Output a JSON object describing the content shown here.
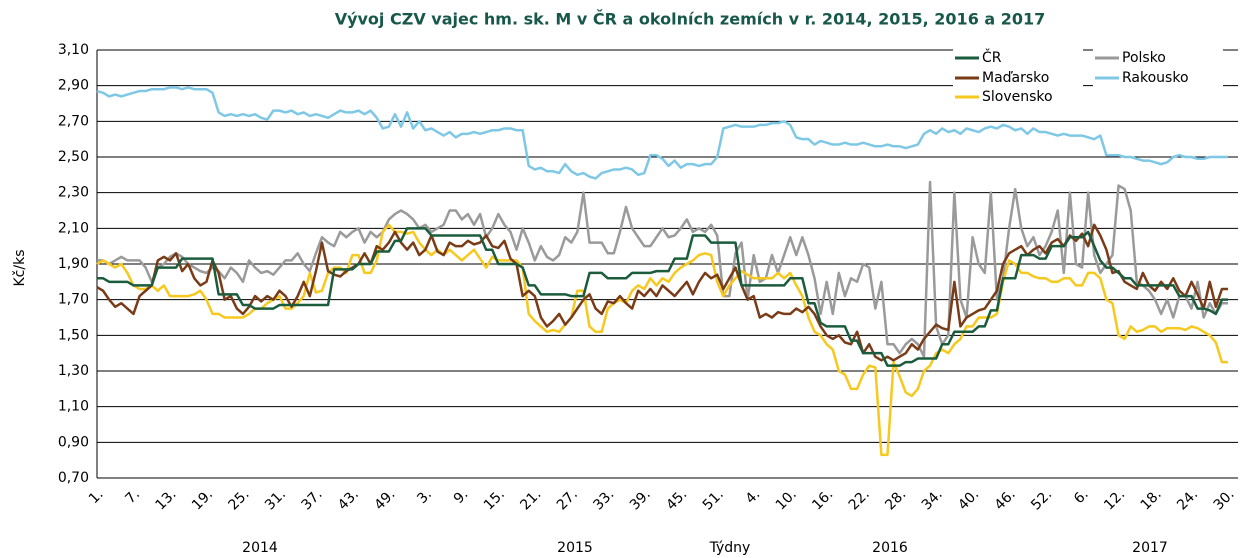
{
  "chart_data": {
    "type": "line",
    "title": "Vývoj CZV vajec hm. sk. M v ČR a okolních  zemích v r. 2014, 2015, 2016 a 2017",
    "y_label": "Kč/ks",
    "x_label": "Týdny",
    "x_group_labels": [
      "2014",
      "2015",
      "2016",
      "2017"
    ],
    "ylim": [
      0.7,
      3.1
    ],
    "yticks": [
      {
        "value": 0.7,
        "label": "0,70"
      },
      {
        "value": 0.9,
        "label": "0,90"
      },
      {
        "value": 1.1,
        "label": "1,10"
      },
      {
        "value": 1.3,
        "label": "1,30"
      },
      {
        "value": 1.5,
        "label": "1,50"
      },
      {
        "value": 1.7,
        "label": "1,70"
      },
      {
        "value": 1.9,
        "label": "1,90"
      },
      {
        "value": 2.1,
        "label": "2,10"
      },
      {
        "value": 2.3,
        "label": "2,30"
      },
      {
        "value": 2.5,
        "label": "2,50"
      },
      {
        "value": 2.7,
        "label": "2,70"
      },
      {
        "value": 2.9,
        "label": "2,90"
      },
      {
        "value": 3.1,
        "label": "3,10"
      }
    ],
    "grid": true,
    "categories": [
      "1.",
      null,
      null,
      null,
      null,
      null,
      "7.",
      null,
      null,
      null,
      null,
      null,
      "13.",
      null,
      null,
      null,
      null,
      null,
      "19.",
      null,
      null,
      null,
      null,
      null,
      "25.",
      null,
      null,
      null,
      null,
      null,
      "31.",
      null,
      null,
      null,
      null,
      null,
      "37.",
      null,
      null,
      null,
      null,
      null,
      "43.",
      null,
      null,
      null,
      null,
      null,
      "49.",
      null,
      null,
      null,
      null,
      null,
      "3.",
      null,
      null,
      null,
      null,
      null,
      "9.",
      null,
      null,
      null,
      null,
      null,
      "15.",
      null,
      null,
      null,
      null,
      null,
      "21.",
      null,
      null,
      null,
      null,
      null,
      "27.",
      null,
      null,
      null,
      null,
      null,
      "33.",
      null,
      null,
      null,
      null,
      null,
      "39.",
      null,
      null,
      null,
      null,
      null,
      "45.",
      null,
      null,
      null,
      null,
      null,
      "51.",
      null,
      null,
      null,
      null,
      null,
      "4.",
      null,
      null,
      null,
      null,
      null,
      "10.",
      null,
      null,
      null,
      null,
      null,
      "16.",
      null,
      null,
      null,
      null,
      null,
      "22.",
      null,
      null,
      null,
      null,
      null,
      "28.",
      null,
      null,
      null,
      null,
      null,
      "34.",
      null,
      null,
      null,
      null,
      null,
      "40.",
      null,
      null,
      null,
      null,
      null,
      "46.",
      null,
      null,
      null,
      null,
      null,
      "52.",
      null,
      null,
      null,
      null,
      null,
      "6.",
      null,
      null,
      null,
      null,
      null,
      "12.",
      null,
      null,
      null,
      null,
      null,
      "18.",
      null,
      null,
      null,
      null,
      null,
      "24.",
      null,
      null,
      null,
      null,
      null,
      "30."
    ],
    "series": [
      {
        "name": "Rakousko",
        "color": "#7ec8e6",
        "values": [
          2.87,
          2.86,
          2.84,
          2.85,
          2.84,
          2.85,
          2.86,
          2.87,
          2.87,
          2.88,
          2.88,
          2.88,
          2.89,
          2.89,
          2.88,
          2.89,
          2.88,
          2.88,
          2.88,
          2.86,
          2.75,
          2.73,
          2.74,
          2.73,
          2.74,
          2.73,
          2.74,
          2.72,
          2.71,
          2.76,
          2.76,
          2.75,
          2.76,
          2.74,
          2.75,
          2.73,
          2.74,
          2.73,
          2.72,
          2.74,
          2.76,
          2.75,
          2.75,
          2.76,
          2.74,
          2.76,
          2.72,
          2.66,
          2.67,
          2.74,
          2.67,
          2.75,
          2.66,
          2.7,
          2.65,
          2.66,
          2.64,
          2.62,
          2.64,
          2.61,
          2.63,
          2.63,
          2.64,
          2.63,
          2.64,
          2.65,
          2.65,
          2.66,
          2.66,
          2.65,
          2.65,
          2.45,
          2.43,
          2.44,
          2.42,
          2.42,
          2.41,
          2.46,
          2.42,
          2.4,
          2.41,
          2.39,
          2.38,
          2.41,
          2.42,
          2.43,
          2.43,
          2.44,
          2.43,
          2.4,
          2.41,
          2.51,
          2.51,
          2.49,
          2.45,
          2.48,
          2.44,
          2.46,
          2.46,
          2.45,
          2.46,
          2.46,
          2.5,
          2.66,
          2.67,
          2.68,
          2.67,
          2.67,
          2.67,
          2.68,
          2.68,
          2.69,
          2.69,
          2.7,
          2.68,
          2.61,
          2.6,
          2.6,
          2.57,
          2.59,
          2.58,
          2.57,
          2.57,
          2.58,
          2.57,
          2.57,
          2.58,
          2.57,
          2.56,
          2.56,
          2.57,
          2.56,
          2.56,
          2.55,
          2.56,
          2.57,
          2.63,
          2.65,
          2.63,
          2.66,
          2.64,
          2.65,
          2.63,
          2.66,
          2.65,
          2.64,
          2.66,
          2.67,
          2.66,
          2.68,
          2.67,
          2.65,
          2.66,
          2.63,
          2.66,
          2.64,
          2.64,
          2.63,
          2.62,
          2.63,
          2.62,
          2.62,
          2.62,
          2.61,
          2.6,
          2.62,
          2.51,
          2.51,
          2.51,
          2.5,
          2.5,
          2.49,
          2.48,
          2.48,
          2.47,
          2.46,
          2.47,
          2.5,
          2.51,
          2.5,
          2.5,
          2.49,
          2.49,
          2.5,
          2.5,
          2.5,
          2.5
        ]
      },
      {
        "name": "Polsko",
        "color": "#9a9a9a",
        "values": [
          1.92,
          1.92,
          1.9,
          1.92,
          1.94,
          1.92,
          1.92,
          1.92,
          1.88,
          1.8,
          1.88,
          1.9,
          1.94,
          1.96,
          1.94,
          1.9,
          1.88,
          1.86,
          1.85,
          1.88,
          1.86,
          1.82,
          1.88,
          1.85,
          1.8,
          1.92,
          1.88,
          1.85,
          1.86,
          1.84,
          1.88,
          1.92,
          1.92,
          1.96,
          1.9,
          1.86,
          1.96,
          2.05,
          2.02,
          2.0,
          2.08,
          2.05,
          2.08,
          2.1,
          2.02,
          2.08,
          2.05,
          2.08,
          2.15,
          2.18,
          2.2,
          2.18,
          2.15,
          2.1,
          2.12,
          2.08,
          2.1,
          2.12,
          2.2,
          2.2,
          2.15,
          2.18,
          2.12,
          2.18,
          2.05,
          2.1,
          2.18,
          2.12,
          2.08,
          1.98,
          2.1,
          2.02,
          1.92,
          2.0,
          1.94,
          1.92,
          1.95,
          2.05,
          2.02,
          2.08,
          2.3,
          2.02,
          2.02,
          2.02,
          1.96,
          1.96,
          2.08,
          2.22,
          2.1,
          2.05,
          2.0,
          2.0,
          2.05,
          2.1,
          2.05,
          2.06,
          2.1,
          2.15,
          2.08,
          2.1,
          2.08,
          2.12,
          2.06,
          1.72,
          1.72,
          1.96,
          2.02,
          1.7,
          1.95,
          1.8,
          1.82,
          1.95,
          1.85,
          1.95,
          2.05,
          1.95,
          2.05,
          1.95,
          1.82,
          1.62,
          1.8,
          1.62,
          1.85,
          1.72,
          1.82,
          1.8,
          1.9,
          1.88,
          1.65,
          1.8,
          1.45,
          1.45,
          1.4,
          1.45,
          1.48,
          1.45,
          1.38,
          2.36,
          1.55,
          1.45,
          1.5,
          2.3,
          1.7,
          1.6,
          2.05,
          1.9,
          1.85,
          2.3,
          1.7,
          1.82,
          2.1,
          2.32,
          2.1,
          2.0,
          2.05,
          1.95,
          2.0,
          2.08,
          2.2,
          1.85,
          2.3,
          1.9,
          1.88,
          2.3,
          1.95,
          1.85,
          1.9,
          1.95,
          2.34,
          2.32,
          2.2,
          1.8,
          1.78,
          1.75,
          1.7,
          1.62,
          1.7,
          1.6,
          1.72,
          1.72,
          1.65,
          1.8,
          1.6,
          1.68,
          1.62,
          1.68,
          1.68
        ]
      },
      {
        "name": "Slovensko",
        "color": "#f7c81e",
        "values": [
          1.9,
          1.92,
          1.9,
          1.88,
          1.9,
          1.85,
          1.78,
          1.76,
          1.76,
          1.78,
          1.75,
          1.78,
          1.72,
          1.72,
          1.72,
          1.72,
          1.73,
          1.75,
          1.7,
          1.62,
          1.62,
          1.6,
          1.6,
          1.6,
          1.6,
          1.62,
          1.65,
          1.65,
          1.68,
          1.7,
          1.72,
          1.65,
          1.65,
          1.68,
          1.72,
          1.85,
          1.74,
          1.75,
          1.85,
          1.88,
          1.88,
          1.85,
          1.95,
          1.95,
          1.85,
          1.85,
          1.92,
          2.08,
          2.12,
          2.08,
          2.08,
          2.07,
          2.08,
          2.02,
          1.98,
          1.95,
          1.98,
          1.95,
          1.98,
          1.95,
          1.92,
          1.95,
          1.98,
          1.93,
          1.88,
          1.94,
          1.92,
          1.92,
          1.92,
          1.92,
          1.88,
          1.62,
          1.58,
          1.55,
          1.52,
          1.53,
          1.52,
          1.56,
          1.6,
          1.75,
          1.75,
          1.55,
          1.52,
          1.52,
          1.65,
          1.68,
          1.7,
          1.68,
          1.75,
          1.78,
          1.76,
          1.82,
          1.78,
          1.82,
          1.8,
          1.85,
          1.88,
          1.9,
          1.92,
          1.95,
          1.96,
          1.95,
          1.8,
          1.72,
          1.78,
          1.82,
          1.86,
          1.84,
          1.82,
          1.82,
          1.82,
          1.82,
          1.85,
          1.82,
          1.85,
          1.78,
          1.72,
          1.6,
          1.52,
          1.5,
          1.45,
          1.42,
          1.3,
          1.28,
          1.2,
          1.2,
          1.28,
          1.33,
          1.32,
          0.83,
          0.83,
          1.35,
          1.27,
          1.18,
          1.16,
          1.2,
          1.3,
          1.33,
          1.4,
          1.42,
          1.4,
          1.45,
          1.48,
          1.55,
          1.55,
          1.6,
          1.6,
          1.6,
          1.62,
          1.8,
          1.92,
          1.9,
          1.85,
          1.85,
          1.83,
          1.82,
          1.82,
          1.8,
          1.8,
          1.82,
          1.82,
          1.78,
          1.78,
          1.85,
          1.85,
          1.82,
          1.7,
          1.68,
          1.5,
          1.48,
          1.55,
          1.52,
          1.53,
          1.55,
          1.55,
          1.52,
          1.54,
          1.54,
          1.54,
          1.53,
          1.55,
          1.54,
          1.52,
          1.5,
          1.46,
          1.35,
          1.35
        ]
      },
      {
        "name": "Maďarsko",
        "color": "#7a3b17",
        "values": [
          1.77,
          1.75,
          1.7,
          1.66,
          1.68,
          1.65,
          1.62,
          1.72,
          1.75,
          1.78,
          1.92,
          1.94,
          1.92,
          1.96,
          1.86,
          1.9,
          1.82,
          1.78,
          1.8,
          1.92,
          1.85,
          1.7,
          1.72,
          1.65,
          1.62,
          1.66,
          1.72,
          1.69,
          1.72,
          1.7,
          1.75,
          1.72,
          1.66,
          1.72,
          1.8,
          1.72,
          1.86,
          2.02,
          1.86,
          1.84,
          1.83,
          1.86,
          1.88,
          1.9,
          1.96,
          1.9,
          2.0,
          1.98,
          2.02,
          2.08,
          2.02,
          1.98,
          2.02,
          1.95,
          1.98,
          2.06,
          1.97,
          1.95,
          2.02,
          2.0,
          2.0,
          2.03,
          2.01,
          2.02,
          2.06,
          2.0,
          1.99,
          2.03,
          1.93,
          1.9,
          1.72,
          1.75,
          1.72,
          1.6,
          1.55,
          1.58,
          1.62,
          1.56,
          1.6,
          1.65,
          1.7,
          1.73,
          1.65,
          1.62,
          1.69,
          1.68,
          1.72,
          1.68,
          1.65,
          1.75,
          1.72,
          1.76,
          1.72,
          1.78,
          1.75,
          1.72,
          1.76,
          1.8,
          1.73,
          1.8,
          1.85,
          1.82,
          1.84,
          1.76,
          1.82,
          1.88,
          1.78,
          1.7,
          1.72,
          1.6,
          1.62,
          1.6,
          1.63,
          1.62,
          1.62,
          1.65,
          1.63,
          1.66,
          1.62,
          1.55,
          1.5,
          1.48,
          1.5,
          1.46,
          1.45,
          1.52,
          1.4,
          1.45,
          1.38,
          1.36,
          1.38,
          1.36,
          1.38,
          1.4,
          1.45,
          1.42,
          1.48,
          1.52,
          1.56,
          1.54,
          1.53,
          1.8,
          1.55,
          1.6,
          1.62,
          1.64,
          1.65,
          1.7,
          1.75,
          1.9,
          1.96,
          1.98,
          2.0,
          1.95,
          1.98,
          2.0,
          1.96,
          2.02,
          2.04,
          2.0,
          2.06,
          2.03,
          2.07,
          2.0,
          2.12,
          2.06,
          1.98,
          1.85,
          1.86,
          1.8,
          1.78,
          1.76,
          1.85,
          1.78,
          1.75,
          1.8,
          1.76,
          1.82,
          1.75,
          1.72,
          1.8,
          1.73,
          1.65,
          1.8,
          1.66,
          1.76,
          1.76
        ]
      },
      {
        "name": "ČR",
        "color": "#1a5c3c",
        "values": [
          1.82,
          1.82,
          1.8,
          1.8,
          1.8,
          1.8,
          1.78,
          1.78,
          1.78,
          1.78,
          1.88,
          1.88,
          1.88,
          1.88,
          1.93,
          1.93,
          1.93,
          1.93,
          1.93,
          1.93,
          1.73,
          1.73,
          1.73,
          1.73,
          1.67,
          1.67,
          1.65,
          1.65,
          1.65,
          1.65,
          1.67,
          1.67,
          1.67,
          1.67,
          1.67,
          1.67,
          1.67,
          1.67,
          1.67,
          1.87,
          1.87,
          1.87,
          1.87,
          1.9,
          1.9,
          1.9,
          1.97,
          1.97,
          1.97,
          2.03,
          2.03,
          2.1,
          2.1,
          2.1,
          2.1,
          2.06,
          2.06,
          2.06,
          2.06,
          2.06,
          2.06,
          2.06,
          2.06,
          2.06,
          1.98,
          1.98,
          1.9,
          1.9,
          1.9,
          1.9,
          1.88,
          1.78,
          1.78,
          1.73,
          1.73,
          1.73,
          1.73,
          1.73,
          1.72,
          1.72,
          1.72,
          1.85,
          1.85,
          1.85,
          1.82,
          1.82,
          1.82,
          1.82,
          1.85,
          1.85,
          1.85,
          1.85,
          1.86,
          1.86,
          1.86,
          1.93,
          1.93,
          1.93,
          2.06,
          2.06,
          2.06,
          2.02,
          2.02,
          2.02,
          2.02,
          2.02,
          1.78,
          1.78,
          1.78,
          1.78,
          1.78,
          1.78,
          1.78,
          1.78,
          1.82,
          1.82,
          1.82,
          1.68,
          1.68,
          1.57,
          1.55,
          1.55,
          1.55,
          1.55,
          1.47,
          1.47,
          1.4,
          1.4,
          1.4,
          1.4,
          1.33,
          1.33,
          1.33,
          1.35,
          1.35,
          1.37,
          1.37,
          1.37,
          1.37,
          1.45,
          1.45,
          1.52,
          1.52,
          1.52,
          1.52,
          1.55,
          1.55,
          1.64,
          1.64,
          1.82,
          1.82,
          1.82,
          1.95,
          1.95,
          1.95,
          1.93,
          1.93,
          2.0,
          2.0,
          2.0,
          2.05,
          2.05,
          2.05,
          2.08,
          2.0,
          1.92,
          1.88,
          1.88,
          1.85,
          1.82,
          1.82,
          1.78,
          1.78,
          1.78,
          1.78,
          1.78,
          1.78,
          1.78,
          1.72,
          1.72,
          1.72,
          1.65,
          1.65,
          1.64,
          1.62,
          1.7,
          1.7
        ]
      }
    ]
  }
}
